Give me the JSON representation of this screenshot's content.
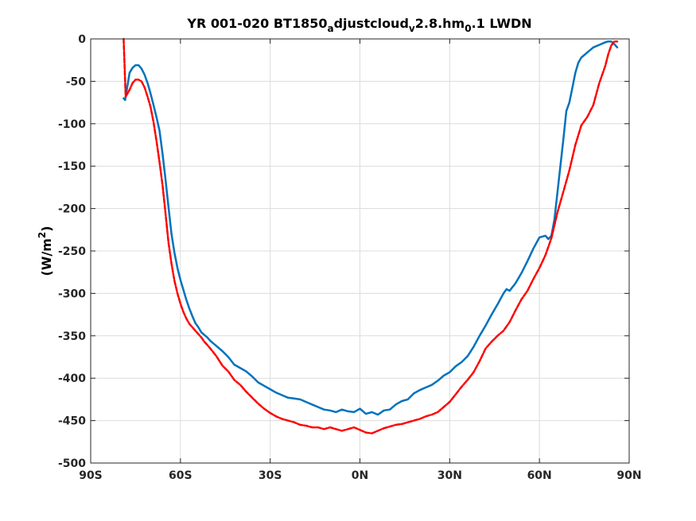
{
  "chart_data": {
    "type": "line",
    "title": "YR 001-020 BT1850_adjustcloud_v2.8.hm_0.1 LWDN",
    "title_parts": {
      "p1": "YR 001-020 BT1850",
      "sub1": "a",
      "p2": "djustcloud",
      "sub2": "v",
      "p3": "2.8.hm",
      "sub3": "0",
      "p4": ".1 LWDN"
    },
    "ylabel": "(W/m2)",
    "ylabel_parts": {
      "main": "(W/m",
      "sup": "2",
      "close": ")"
    },
    "xlabel": "",
    "xlim": [
      -90,
      90
    ],
    "ylim": [
      -500,
      0
    ],
    "xticks": [
      {
        "value": -90,
        "label": "90S"
      },
      {
        "value": -60,
        "label": "60S"
      },
      {
        "value": -30,
        "label": "30S"
      },
      {
        "value": 0,
        "label": "0N"
      },
      {
        "value": 30,
        "label": "30N"
      },
      {
        "value": 60,
        "label": "60N"
      },
      {
        "value": 90,
        "label": "90N"
      }
    ],
    "yticks": [
      {
        "value": 0,
        "label": "0"
      },
      {
        "value": -50,
        "label": "-50"
      },
      {
        "value": -100,
        "label": "-100"
      },
      {
        "value": -150,
        "label": "-150"
      },
      {
        "value": -200,
        "label": "-200"
      },
      {
        "value": -250,
        "label": "-250"
      },
      {
        "value": -300,
        "label": "-300"
      },
      {
        "value": -350,
        "label": "-350"
      },
      {
        "value": -400,
        "label": "-400"
      },
      {
        "value": -450,
        "label": "-450"
      },
      {
        "value": -500,
        "label": "-500"
      }
    ],
    "grid": true,
    "series": [
      {
        "color": "#0072BD",
        "style": "solid",
        "x": [
          -79,
          -78.5,
          -77,
          -76,
          -75,
          -74,
          -73,
          -72,
          -71,
          -70,
          -69,
          -68,
          -67,
          -66,
          -65,
          -64,
          -63,
          -62,
          -61,
          -60,
          -59,
          -58,
          -57,
          -56,
          -55,
          -54,
          -53,
          -52,
          -51,
          -50,
          -48,
          -46,
          -44,
          -42,
          -40,
          -38,
          -36,
          -34,
          -32,
          -30,
          -28,
          -26,
          -24,
          -22,
          -20,
          -18,
          -16,
          -14,
          -12,
          -10,
          -8,
          -6,
          -4,
          -2,
          0,
          2,
          4,
          6,
          8,
          10,
          12,
          14,
          16,
          18,
          20,
          22,
          24,
          26,
          28,
          30,
          32,
          34,
          36,
          38,
          40,
          42,
          44,
          46,
          48,
          49,
          50,
          52,
          54,
          56,
          58,
          60,
          62,
          63,
          64,
          65,
          66,
          67,
          68,
          69,
          70,
          71,
          72,
          73,
          74,
          76,
          78,
          80,
          82,
          83,
          84,
          85,
          86
        ],
        "y": [
          -70,
          -72,
          -40,
          -34,
          -31,
          -31,
          -35,
          -42,
          -52,
          -64,
          -78,
          -92,
          -108,
          -135,
          -165,
          -198,
          -230,
          -252,
          -270,
          -284,
          -296,
          -308,
          -318,
          -327,
          -335,
          -340,
          -346,
          -349,
          -352,
          -356,
          -362,
          -368,
          -375,
          -384,
          -388,
          -392,
          -398,
          -405,
          -409,
          -413,
          -417,
          -420,
          -423,
          -424,
          -425,
          -428,
          -431,
          -434,
          -437,
          -438,
          -440,
          -437,
          -439,
          -440,
          -436,
          -442,
          -440,
          -443,
          -438,
          -437,
          -431,
          -427,
          -425,
          -418,
          -414,
          -411,
          -408,
          -403,
          -397,
          -393,
          -386,
          -381,
          -374,
          -363,
          -350,
          -338,
          -325,
          -313,
          -300,
          -295,
          -297,
          -288,
          -276,
          -262,
          -247,
          -234,
          -232,
          -236,
          -232,
          -213,
          -182,
          -150,
          -118,
          -85,
          -75,
          -58,
          -40,
          -28,
          -22,
          -16,
          -10,
          -7,
          -4,
          -3,
          -3,
          -6,
          -10
        ]
      },
      {
        "color": "#FF0000",
        "style": "dashed",
        "x": [
          -79,
          -78.3,
          -77,
          -76,
          -75,
          -74,
          -73,
          -72,
          -71,
          -70,
          -69,
          -68,
          -67,
          -66,
          -65,
          -64,
          -63,
          -62,
          -61,
          -60,
          -59,
          -58,
          -57,
          -56,
          -55,
          -54,
          -53,
          -52,
          -51,
          -50,
          -48,
          -46,
          -44,
          -42,
          -40,
          -38,
          -36,
          -34,
          -32,
          -30,
          -28,
          -26,
          -24,
          -22,
          -20,
          -18,
          -16,
          -14,
          -12,
          -10,
          -8,
          -6,
          -4,
          -2,
          0,
          2,
          4,
          6,
          8,
          10,
          12,
          14,
          16,
          18,
          20,
          22,
          24,
          26,
          28,
          30,
          32,
          34,
          36,
          38,
          40,
          42,
          44,
          46,
          48,
          50,
          52,
          54,
          56,
          58,
          60,
          62,
          64,
          66,
          68,
          70,
          72,
          74,
          76,
          78,
          80,
          82,
          83,
          84,
          85,
          86
        ],
        "y": [
          0,
          -68,
          -60,
          -52,
          -48,
          -48,
          -50,
          -57,
          -68,
          -80,
          -98,
          -120,
          -145,
          -172,
          -205,
          -240,
          -265,
          -285,
          -300,
          -312,
          -322,
          -330,
          -336,
          -340,
          -344,
          -348,
          -352,
          -357,
          -361,
          -365,
          -374,
          -385,
          -392,
          -402,
          -408,
          -416,
          -423,
          -430,
          -436,
          -441,
          -445,
          -448,
          -450,
          -452,
          -455,
          -456,
          -458,
          -458,
          -460,
          -458,
          -460,
          -462,
          -460,
          -458,
          -461,
          -464,
          -465,
          -462,
          -459,
          -457,
          -455,
          -454,
          -452,
          -450,
          -448,
          -445,
          -443,
          -440,
          -434,
          -428,
          -419,
          -410,
          -402,
          -393,
          -380,
          -365,
          -357,
          -350,
          -344,
          -334,
          -320,
          -307,
          -297,
          -283,
          -270,
          -255,
          -235,
          -205,
          -180,
          -155,
          -125,
          -102,
          -92,
          -78,
          -52,
          -32,
          -18,
          -8,
          -3,
          -3
        ]
      }
    ]
  }
}
